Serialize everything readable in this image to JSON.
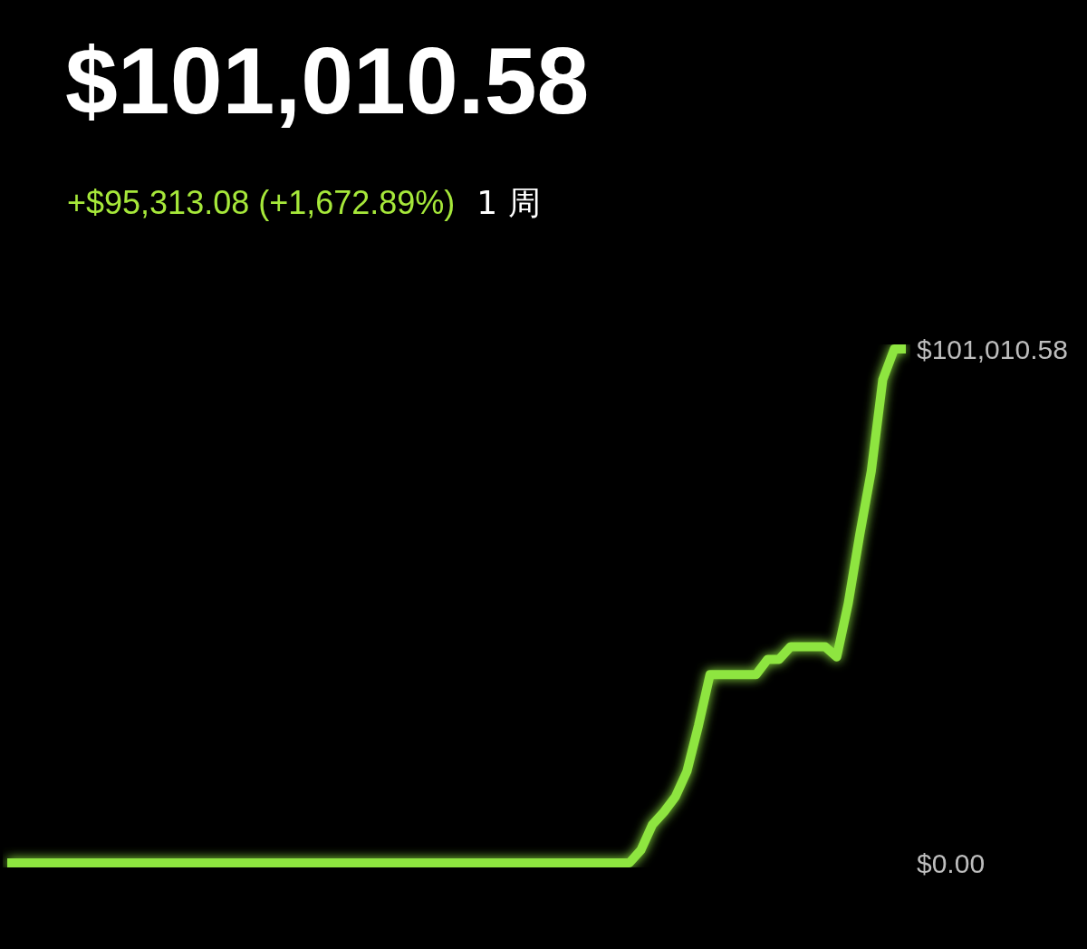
{
  "chart_data": {
    "type": "line",
    "title": "$101,010.58",
    "subtitle": "+$95,313.08 (+1,672.89%)",
    "annotations": [
      "1 周"
    ],
    "categories": [
      null,
      null,
      null,
      null,
      null,
      null,
      null,
      null,
      null,
      null,
      null,
      null,
      null,
      null,
      null,
      null,
      null,
      null,
      null,
      null,
      null,
      null,
      null,
      null,
      null,
      null,
      null,
      null,
      null,
      null,
      null,
      null,
      null,
      null,
      null,
      null,
      null,
      null,
      null,
      null,
      null,
      null,
      null,
      null,
      null,
      null,
      null,
      null,
      null,
      null,
      null,
      null,
      null,
      null,
      null,
      null,
      null,
      null,
      null,
      null,
      null,
      null,
      null,
      null,
      null,
      null,
      null,
      null,
      null,
      null,
      null,
      null,
      null,
      null,
      null,
      null,
      null,
      null,
      null
    ],
    "series": [
      {
        "color": "#8ee53f",
        "values": [
          0,
          0,
          0,
          0,
          0,
          0,
          0,
          0,
          0,
          0,
          0,
          0,
          0,
          0,
          0,
          0,
          0,
          0,
          0,
          0,
          0,
          0,
          0,
          0,
          0,
          0,
          0,
          0,
          0,
          0,
          0,
          0,
          0,
          0,
          0,
          0,
          0,
          0,
          0,
          0,
          0,
          0,
          0,
          0,
          0,
          0,
          0,
          0,
          0,
          0,
          0,
          0,
          0,
          0,
          0,
          2500,
          7500,
          10000,
          13000,
          18000,
          27000,
          37000,
          37000,
          37000,
          37000,
          37000,
          40000,
          40000,
          42500,
          42500,
          42500,
          42500,
          40500,
          51000,
          64500,
          77000,
          95000,
          101010.58,
          101010.58
        ]
      }
    ],
    "ylim": [
      0,
      101010.58
    ],
    "yticks": [
      {
        "value": 0,
        "label": "$0.00"
      },
      {
        "value": 101010.58,
        "label": "$101,010.58"
      }
    ],
    "tick_labels": "y",
    "line_style": "solid"
  }
}
